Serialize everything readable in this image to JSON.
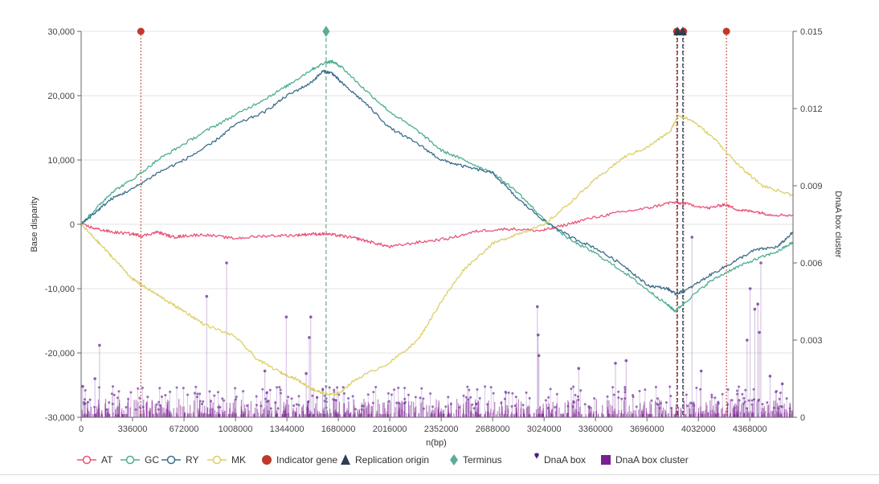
{
  "chart_data": {
    "type": "line",
    "xlabel": "n(bp)",
    "ylabel": "Base disparity",
    "y2label": "DnaA box cluster",
    "xlim": [
      0,
      4650000
    ],
    "ylim": [
      -30000,
      30000
    ],
    "y2lim": [
      0,
      0.015
    ],
    "x_ticks": [
      0,
      336000,
      672000,
      1008000,
      1344000,
      1680000,
      2016000,
      2352000,
      2688000,
      3024000,
      3360000,
      3696000,
      4032000,
      4368000
    ],
    "x_tick_labels": [
      "0",
      "336000",
      "672000",
      "1008000",
      "1344000",
      "1680000",
      "2016000",
      "2352000",
      "2688000",
      "3024000",
      "3360000",
      "3696000",
      "4032000",
      "4368000"
    ],
    "y_ticks": [
      30000,
      20000,
      10000,
      0,
      -10000,
      -20000,
      -30000
    ],
    "y_tick_labels": [
      "30,000",
      "20,000",
      "10,000",
      "0",
      "-10,000",
      "-20,000",
      "-30,000"
    ],
    "y2_ticks": [
      0.015,
      0.012,
      0.009,
      0.006,
      0.003,
      0
    ],
    "y2_tick_labels": [
      "0.015",
      "0.012",
      "0.009",
      "0.006",
      "0.003",
      "0"
    ],
    "grid": true,
    "legend_position": "bottom",
    "series": [
      {
        "name": "AT",
        "color": "#e8557a",
        "x": [
          0,
          100000,
          200000,
          336000,
          400000,
          500000,
          600000,
          672000,
          800000,
          1000000,
          1200000,
          1400000,
          1500000,
          1600000,
          1700000,
          1800000,
          1900000,
          2016000,
          2200000,
          2400000,
          2600000,
          2800000,
          3000000,
          3100000,
          3300000,
          3500000,
          3700000,
          3850000,
          3950000,
          4100000,
          4200000,
          4300000,
          4400000,
          4500000,
          4650000
        ],
        "y": [
          0,
          -700,
          -1200,
          -1500,
          -1800,
          -1200,
          -2000,
          -1800,
          -1600,
          -2200,
          -1800,
          -1700,
          -1500,
          -1500,
          -1800,
          -2200,
          -2800,
          -3500,
          -2800,
          -2200,
          -1000,
          -700,
          -1000,
          -500,
          800,
          1800,
          2500,
          3400,
          3200,
          2500,
          3100,
          2200,
          2000,
          1500,
          1400
        ]
      },
      {
        "name": "GC",
        "color": "#4fae94",
        "x": [
          0,
          100000,
          200000,
          336000,
          500000,
          672000,
          850000,
          1008000,
          1200000,
          1344000,
          1500000,
          1600000,
          1640000,
          1700000,
          1850000,
          2016000,
          2200000,
          2352000,
          2500000,
          2688000,
          2850000,
          3024000,
          3200000,
          3360000,
          3550000,
          3700000,
          3830000,
          3880000,
          3950000,
          4100000,
          4250000,
          4400000,
          4550000,
          4650000
        ],
        "y": [
          0,
          2500,
          5000,
          7000,
          10000,
          12500,
          15000,
          17000,
          19500,
          21500,
          24000,
          25200,
          25300,
          24500,
          21000,
          17500,
          14500,
          11500,
          10000,
          8000,
          5000,
          700,
          -2500,
          -4500,
          -7500,
          -10200,
          -12500,
          -13500,
          -12000,
          -9000,
          -7000,
          -5500,
          -4200,
          -2800
        ]
      },
      {
        "name": "RY",
        "color": "#3d6e8c",
        "x": [
          0,
          100000,
          200000,
          336000,
          500000,
          672000,
          850000,
          1008000,
          1200000,
          1344000,
          1500000,
          1580000,
          1640000,
          1700000,
          1850000,
          2016000,
          2200000,
          2352000,
          2500000,
          2688000,
          2850000,
          3024000,
          3200000,
          3360000,
          3550000,
          3700000,
          3830000,
          3880000,
          3950000,
          4100000,
          4250000,
          4400000,
          4550000,
          4650000
        ],
        "y": [
          0,
          2000,
          4000,
          5500,
          8000,
          10000,
          12500,
          15500,
          17500,
          20000,
          22000,
          23800,
          23500,
          22000,
          19000,
          15000,
          12500,
          10000,
          9000,
          8000,
          4000,
          600,
          -2000,
          -3700,
          -6500,
          -9500,
          -10000,
          -10800,
          -10300,
          -8000,
          -6000,
          -4000,
          -3500,
          -1200
        ]
      },
      {
        "name": "MK",
        "color": "#dccf6a",
        "x": [
          0,
          100000,
          200000,
          336000,
          400000,
          500000,
          600000,
          672000,
          800000,
          1008000,
          1150000,
          1300000,
          1400000,
          1500000,
          1550000,
          1620000,
          1680000,
          1800000,
          2016000,
          2200000,
          2352000,
          2500000,
          2688000,
          2850000,
          3024000,
          3200000,
          3360000,
          3550000,
          3700000,
          3850000,
          3900000,
          4000000,
          4150000,
          4300000,
          4450000,
          4650000
        ],
        "y": [
          0,
          -2500,
          -5000,
          -8500,
          -9500,
          -11000,
          -12500,
          -13500,
          -15500,
          -17500,
          -21000,
          -23000,
          -24000,
          -25500,
          -26000,
          -26500,
          -26300,
          -24000,
          -21500,
          -18000,
          -12000,
          -7000,
          -3000,
          -1500,
          -100,
          3500,
          7000,
          10500,
          12000,
          14500,
          17000,
          16000,
          13000,
          9000,
          6000,
          4500
        ]
      }
    ],
    "indicator_gene": {
      "name": "Indicator gene",
      "color": "#c0392b",
      "x": [
        390000,
        3890000,
        3935000,
        4215000
      ],
      "y": 30000
    },
    "replication_origin": {
      "name": "Replication origin",
      "color": "#2c3e50",
      "x": [
        3895000,
        3930000
      ],
      "y": 30000
    },
    "terminus": {
      "name": "Terminus",
      "color": "#5eab9a",
      "x": [
        1600000
      ],
      "y": 30000
    },
    "dnaa_box": {
      "name": "DnaA box",
      "color": "#7b3fa0"
    },
    "dnaa_box_cluster": {
      "name": "DnaA box cluster",
      "color": "#7b1e8e"
    },
    "dnaa_spikes": [
      {
        "x": 120000,
        "v": 0.0028
      },
      {
        "x": 90000,
        "v": 0.0015
      },
      {
        "x": 10000,
        "v": 0.0012
      },
      {
        "x": 820000,
        "v": 0.0047
      },
      {
        "x": 950000,
        "v": 0.006
      },
      {
        "x": 1340000,
        "v": 0.0039
      },
      {
        "x": 1500000,
        "v": 0.0039
      },
      {
        "x": 1470000,
        "v": 0.0017
      },
      {
        "x": 1200000,
        "v": 0.0018
      },
      {
        "x": 1490000,
        "v": 0.0031
      },
      {
        "x": 2980000,
        "v": 0.0043
      },
      {
        "x": 2985000,
        "v": 0.0032
      },
      {
        "x": 2990000,
        "v": 0.0024
      },
      {
        "x": 3250000,
        "v": 0.0019
      },
      {
        "x": 3490000,
        "v": 0.0021
      },
      {
        "x": 3560000,
        "v": 0.0022
      },
      {
        "x": 3990000,
        "v": 0.007
      },
      {
        "x": 4050000,
        "v": 0.0018
      },
      {
        "x": 4370000,
        "v": 0.005
      },
      {
        "x": 4400000,
        "v": 0.0042
      },
      {
        "x": 4420000,
        "v": 0.0044
      },
      {
        "x": 4430000,
        "v": 0.0033
      },
      {
        "x": 4440000,
        "v": 0.006
      },
      {
        "x": 4350000,
        "v": 0.003
      },
      {
        "x": 4500000,
        "v": 0.0016
      },
      {
        "x": 4580000,
        "v": 0.0013
      }
    ]
  },
  "legend": [
    {
      "name": "AT",
      "label": "AT",
      "kind": "line-circle",
      "color": "#e8557a"
    },
    {
      "name": "GC",
      "label": "GC",
      "kind": "line-circle",
      "color": "#4fae94"
    },
    {
      "name": "RY",
      "label": "RY",
      "kind": "line-circle",
      "color": "#3d6e8c"
    },
    {
      "name": "MK",
      "label": "MK",
      "kind": "line-circle",
      "color": "#dccf6a"
    },
    {
      "name": "indicator-gene",
      "label": "Indicator gene",
      "kind": "circle",
      "color": "#c0392b"
    },
    {
      "name": "replication-origin",
      "label": "Replication origin",
      "kind": "triangle",
      "color": "#2c3e50"
    },
    {
      "name": "terminus",
      "label": "Terminus",
      "kind": "diamond",
      "color": "#5eab9a"
    },
    {
      "name": "dnaa-box",
      "label": "DnaA box",
      "kind": "pin",
      "color": "#4b1c80"
    },
    {
      "name": "dnaa-box-cluster",
      "label": "DnaA box cluster",
      "kind": "square",
      "color": "#7b1e8e"
    }
  ]
}
